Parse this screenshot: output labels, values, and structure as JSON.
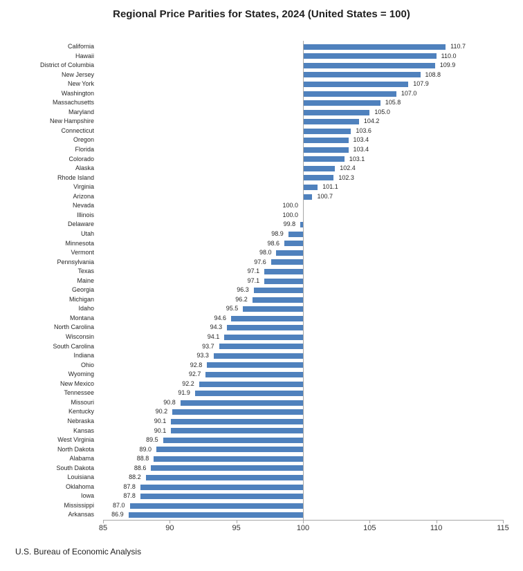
{
  "title": "Regional Price Parities for States, 2024 (United States = 100)",
  "footer": "U.S. Bureau of Economic Analysis",
  "colors": {
    "bar": "#4F81BD",
    "axis": "#A6A6A6",
    "label_text": "#262626",
    "tick_text": "#333333"
  },
  "chart_data": {
    "type": "bar",
    "orientation": "horizontal",
    "title": "Regional Price Parities for States, 2024 (United States = 100)",
    "source": "U.S. Bureau of Economic Analysis",
    "baseline": 100,
    "xlim": [
      85,
      115
    ],
    "x_ticks": [
      85,
      90,
      95,
      100,
      105,
      110,
      115
    ],
    "grid": false,
    "legend": "none",
    "value_decimals": 1,
    "categories": [
      "California",
      "Hawaii",
      "District of Columbia",
      "New Jersey",
      "New York",
      "Washington",
      "Massachusetts",
      "Maryland",
      "New Hampshire",
      "Connecticut",
      "Oregon",
      "Florida",
      "Colorado",
      "Alaska",
      "Rhode Island",
      "Virginia",
      "Arizona",
      "Nevada",
      "Illinois",
      "Delaware",
      "Utah",
      "Minnesota",
      "Vermont",
      "Pennsylvania",
      "Texas",
      "Maine",
      "Georgia",
      "Michigan",
      "Idaho",
      "Montana",
      "North Carolina",
      "Wisconsin",
      "South Carolina",
      "Indiana",
      "Ohio",
      "Wyoming",
      "New Mexico",
      "Tennessee",
      "Missouri",
      "Kentucky",
      "Nebraska",
      "Kansas",
      "West Virginia",
      "North Dakota",
      "Alabama",
      "South Dakota",
      "Louisiana",
      "Oklahoma",
      "Iowa",
      "Mississippi",
      "Arkansas"
    ],
    "values": [
      110.7,
      110.0,
      109.9,
      108.8,
      107.9,
      107.0,
      105.8,
      105.0,
      104.2,
      103.6,
      103.4,
      103.4,
      103.1,
      102.4,
      102.3,
      101.1,
      100.7,
      100.0,
      100.0,
      99.8,
      98.9,
      98.6,
      98.0,
      97.6,
      97.1,
      97.1,
      96.3,
      96.2,
      95.5,
      94.6,
      94.3,
      94.1,
      93.7,
      93.3,
      92.8,
      92.7,
      92.2,
      91.9,
      90.8,
      90.2,
      90.1,
      90.1,
      89.5,
      89.0,
      88.8,
      88.6,
      88.2,
      87.8,
      87.8,
      87.0,
      86.9
    ]
  }
}
